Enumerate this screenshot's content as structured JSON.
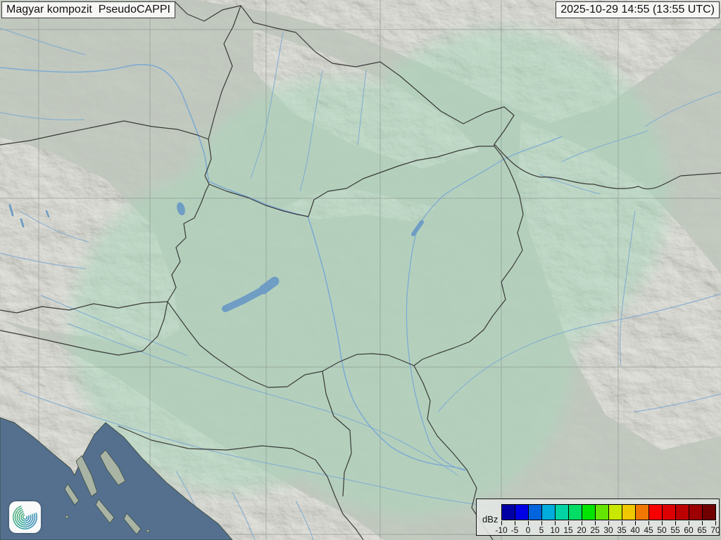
{
  "header": {
    "product_label": "Magyar kompozit  PseudoCAPPI",
    "timestamp_label": "2025-10-29 14:55 (13:55 UTC)"
  },
  "legend": {
    "unit": "dBz",
    "tick_values": [
      "-10",
      "-5",
      "0",
      "5",
      "10",
      "15",
      "20",
      "25",
      "30",
      "35",
      "40",
      "45",
      "50",
      "55",
      "60",
      "65",
      "70"
    ],
    "colors": [
      "#0000a4",
      "#0000e4",
      "#0064dc",
      "#00acdc",
      "#00d4a4",
      "#00dc64",
      "#00e400",
      "#64e400",
      "#c8e800",
      "#f0c800",
      "#f07800",
      "#f80000",
      "#dc0000",
      "#bc0000",
      "#9c0000",
      "#700000"
    ]
  },
  "map": {
    "colors": {
      "land": "#b6bfb2",
      "coverage": "#a8d8bc",
      "sea": "#54708e",
      "river": "#7fabd2",
      "lake": "#6f9dc4",
      "border": "#3a3a38",
      "graticule": "#848c89",
      "mountain_tint": "#d8cbb8",
      "island": "#a9b4a4",
      "coast": "#3f4d46"
    },
    "branding": {
      "logo_icon": "hungaromet-spiral-logo"
    }
  }
}
